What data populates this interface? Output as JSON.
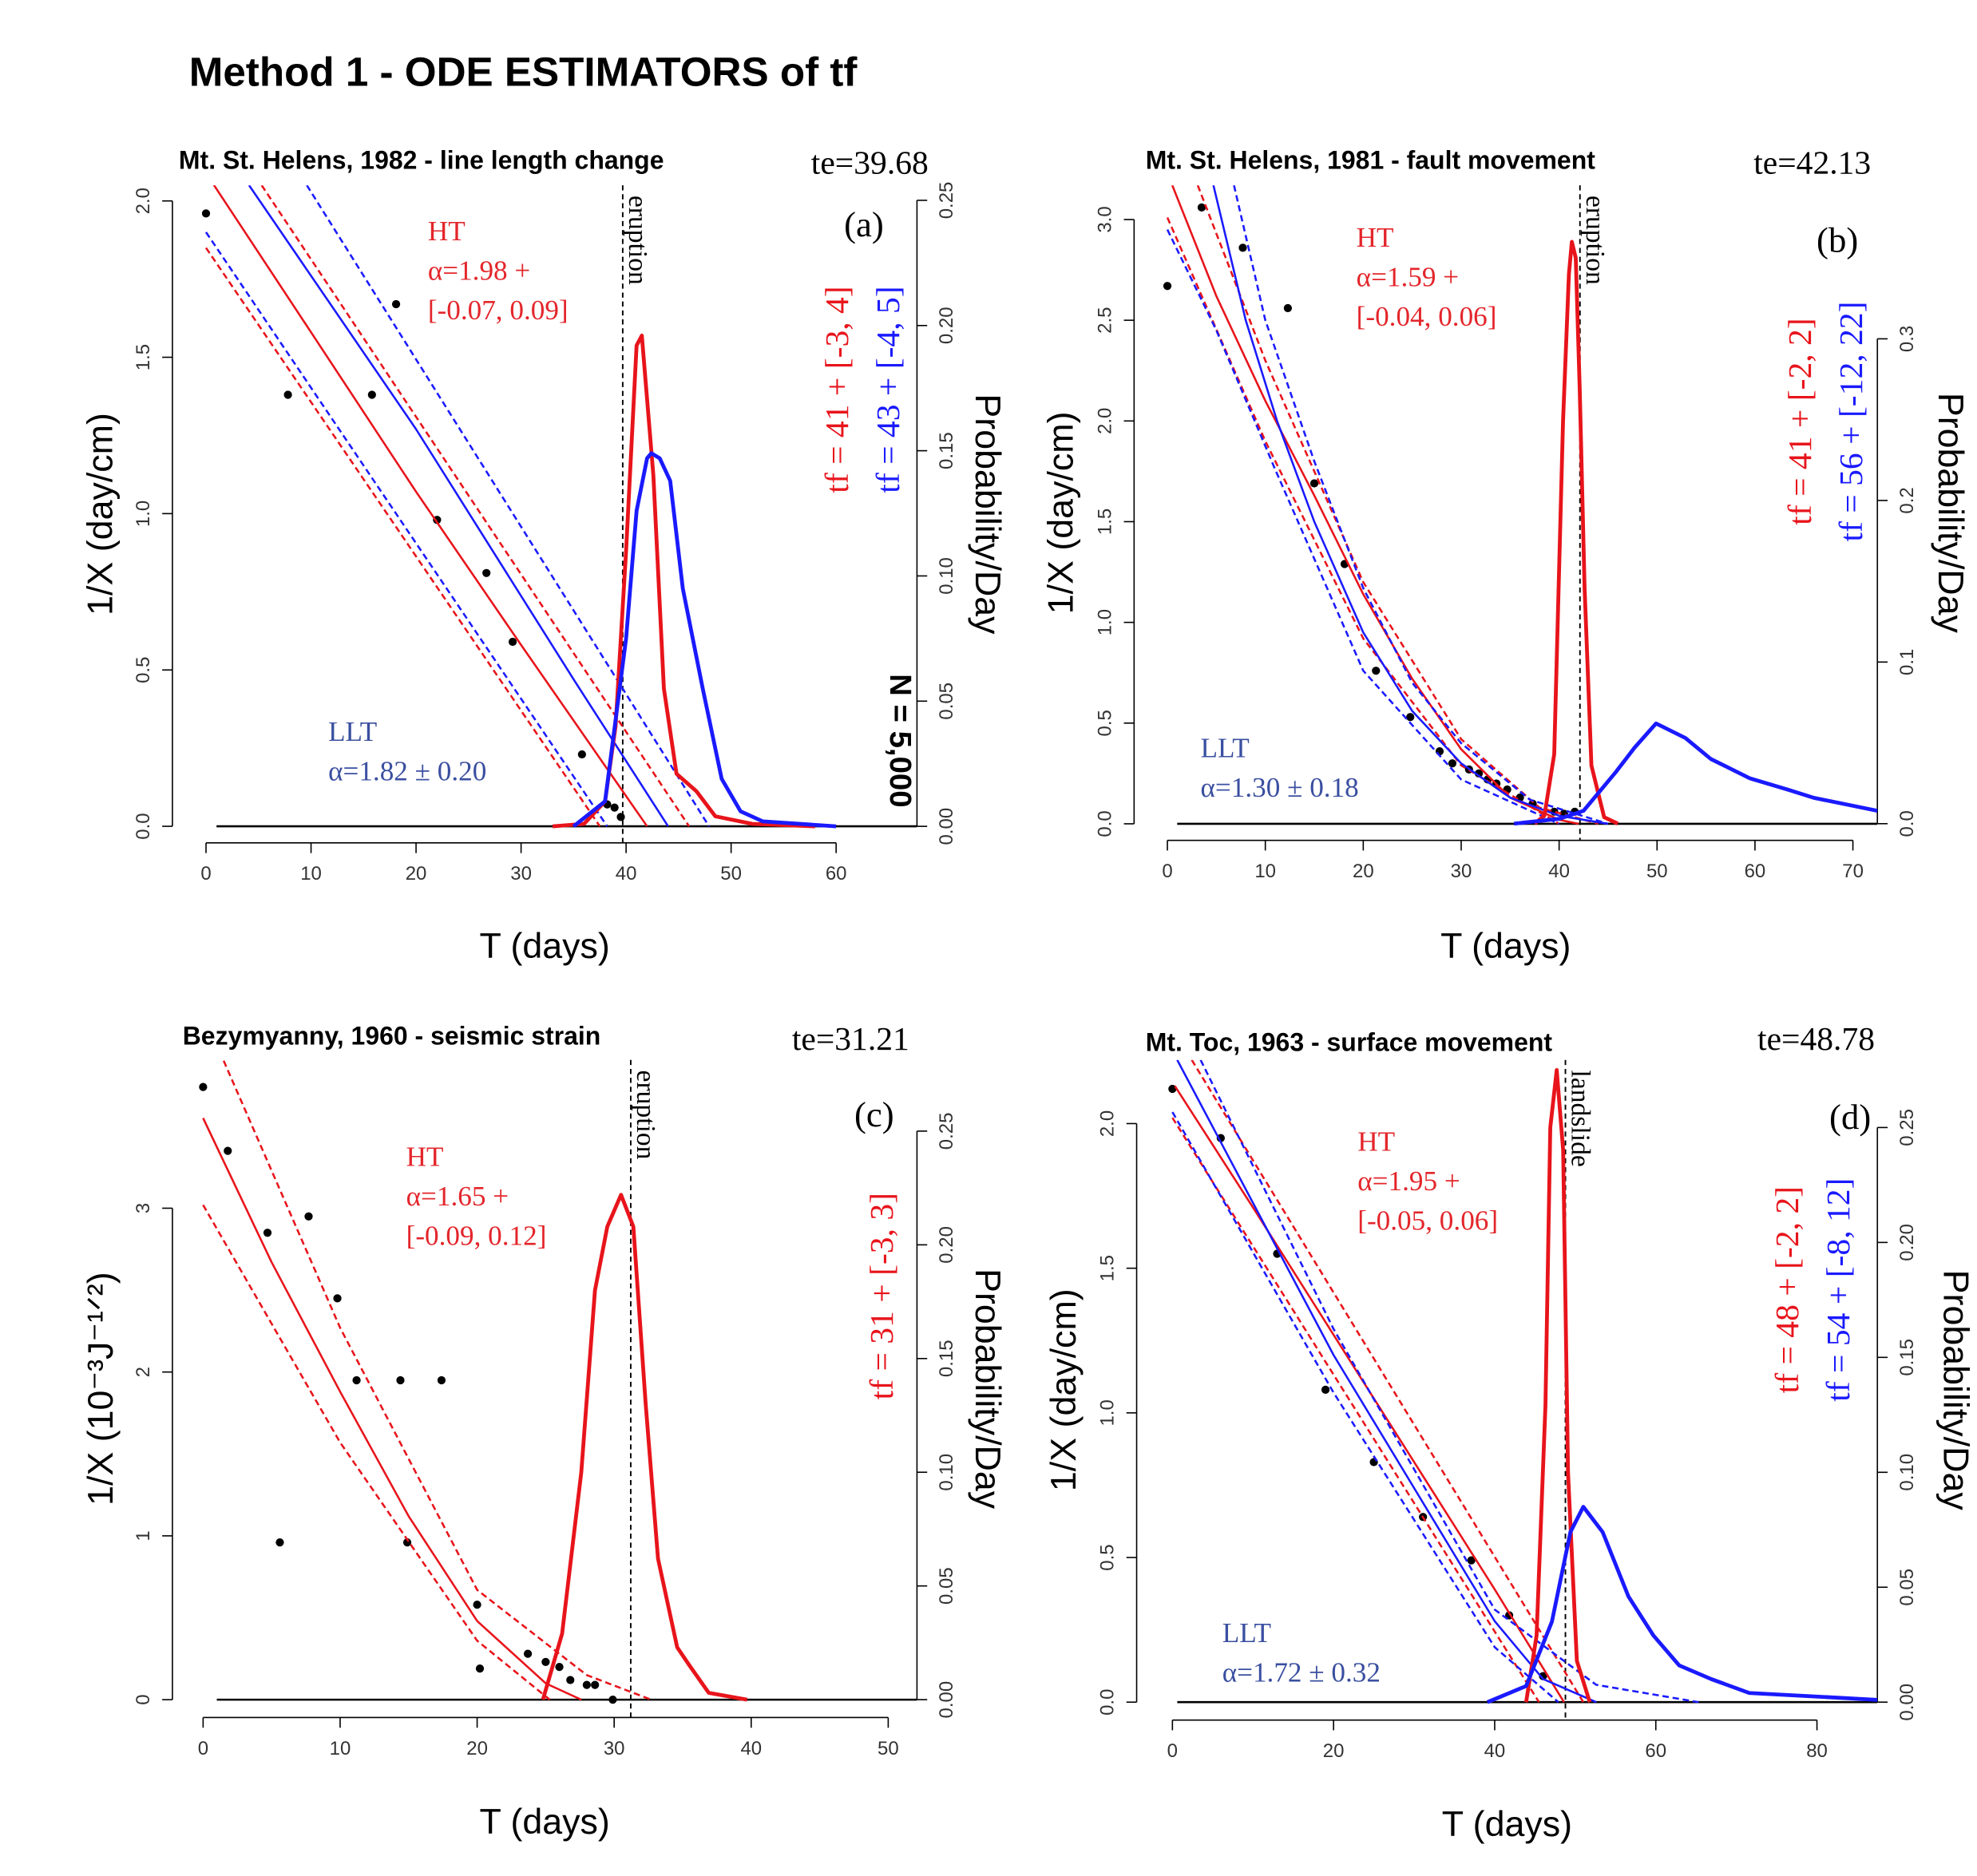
{
  "title": "Method 1 - ODE ESTIMATORS of tf",
  "chart_data": [
    {
      "type": "line",
      "title": "Mt. St. Helens, 1982 - line length change",
      "te": 39.68,
      "te_label": "te=39.68",
      "panel_label": "(a)",
      "xlabel": "T (days)",
      "ylabel": "1/X (day/cm)",
      "y2label": "Probability/Day",
      "ht_label": [
        "HT",
        "α=1.98 +",
        "[-0.07, 0.09]"
      ],
      "llt_label": [
        "LLT",
        "α=1.82 ± 0.20"
      ],
      "tf_labels": [
        {
          "text": "tf = 41 + [-3, 4]",
          "color": "#e8141b"
        },
        {
          "text": "tf = 43 + [-4, 5]",
          "color": "#1a1aff"
        }
      ],
      "n_label": "N = 5,000",
      "event_label": "eruption",
      "xlim": [
        -3.2,
        67.7
      ],
      "ylim": [
        -0.053,
        2.05
      ],
      "y2lim": [
        -0.0066,
        0.256
      ],
      "xticks": [
        0,
        10,
        20,
        30,
        40,
        50,
        60
      ],
      "yticks": [
        {
          "value": 0,
          "label": "0.0"
        },
        0.5,
        {
          "value": 1,
          "label": "1.0"
        },
        1.5,
        {
          "value": 2,
          "label": "2.0"
        }
      ],
      "y2ticks": [
        {
          "value": 0,
          "label": "0.00"
        },
        0.05,
        {
          "value": 0.1,
          "label": "0.10"
        },
        0.15,
        {
          "value": 0.2,
          "label": "0.20"
        },
        0.25
      ],
      "series": [
        {
          "style": "solid",
          "color": "#000000",
          "x": [
            1,
            67.7
          ],
          "values": [
            0,
            0
          ]
        },
        {
          "style": "points",
          "color": "#000000",
          "x": [
            0,
            7.8,
            15.8,
            18.1,
            22,
            26.7,
            29.2,
            35.8,
            38.2,
            38.9,
            39.5
          ],
          "values": [
            1.96,
            1.38,
            1.38,
            1.67,
            0.98,
            0.81,
            0.59,
            0.23,
            0.07,
            0.06,
            0.03
          ]
        },
        {
          "style": "solid",
          "color": "#e8141b",
          "x": [
            -1,
            10,
            20,
            30,
            42
          ],
          "values": [
            2.14,
            1.58,
            1.07,
            0.58,
            0
          ]
        },
        {
          "style": "dashed",
          "color": "#e8141b",
          "x": [
            5.3,
            46
          ],
          "values": [
            2.05,
            0
          ]
        },
        {
          "style": "dashed",
          "color": "#e8141b",
          "x": [
            0,
            37.5
          ],
          "values": [
            1.85,
            0
          ]
        },
        {
          "style": "solid",
          "color": "#1a1aff",
          "x": [
            4.1,
            20,
            35,
            44
          ],
          "values": [
            2.05,
            1.27,
            0.47,
            0
          ]
        },
        {
          "style": "dashed",
          "color": "#1a1aff",
          "x": [
            9.6,
            47.9
          ],
          "values": [
            2.05,
            0
          ]
        },
        {
          "style": "dashed",
          "color": "#1a1aff",
          "x": [
            0,
            38.2
          ],
          "values": [
            1.9,
            0
          ]
        },
        {
          "style": "density",
          "axis": "y2",
          "color": "#e8141b",
          "x": [
            33,
            36,
            38,
            39,
            40,
            41,
            41.5,
            42.6,
            43.6,
            44.8,
            46.7,
            48.5,
            52,
            58
          ],
          "values": [
            0,
            0.001,
            0.01,
            0.04,
            0.11,
            0.192,
            0.196,
            0.14,
            0.055,
            0.021,
            0.014,
            0.004,
            0.001,
            0
          ]
        },
        {
          "style": "density",
          "axis": "y2",
          "color": "#1a1aff",
          "x": [
            35,
            38,
            40,
            41,
            42,
            42.4,
            43.2,
            44.2,
            45.4,
            47.3,
            49.1,
            50.9,
            53,
            60
          ],
          "values": [
            0,
            0.01,
            0.075,
            0.126,
            0.147,
            0.149,
            0.147,
            0.138,
            0.095,
            0.055,
            0.019,
            0.006,
            0.002,
            0
          ]
        }
      ]
    },
    {
      "type": "line",
      "title": "Mt. St. Helens, 1981 - fault movement",
      "te": 42.13,
      "te_label": "te=42.13",
      "panel_label": "(b)",
      "xlabel": "T (days)",
      "ylabel": "1/X (day/cm)",
      "y2label": "Probability/Day",
      "ht_label": [
        "HT",
        "α=1.59 +",
        "[-0.04, 0.06]"
      ],
      "llt_label": [
        "LLT",
        "α=1.30 ± 0.18"
      ],
      "tf_labels": [
        {
          "text": "tf = 41 + [-2, 2]",
          "color": "#e8141b"
        },
        {
          "text": "tf = 56 + [-12, 22]",
          "color": "#1a1aff"
        }
      ],
      "event_label": "eruption",
      "xlim": [
        -3.4,
        72.5
      ],
      "ylim": [
        -0.082,
        3.17
      ],
      "y2lim": [
        -0.0103,
        0.395
      ],
      "xticks": [
        0,
        10,
        20,
        30,
        40,
        50,
        60,
        70
      ],
      "yticks": [
        {
          "value": 0,
          "label": "0.0"
        },
        0.5,
        {
          "value": 1,
          "label": "1.0"
        },
        1.5,
        {
          "value": 2,
          "label": "2.0"
        },
        2.5,
        {
          "value": 3,
          "label": "3.0"
        }
      ],
      "y2ticks": [
        {
          "value": 0,
          "label": "0.0"
        },
        0.1,
        0.2,
        0.3
      ],
      "series": [
        {
          "style": "solid",
          "color": "#000000",
          "x": [
            1,
            72.5
          ],
          "values": [
            0,
            0
          ]
        },
        {
          "style": "points",
          "color": "#000000",
          "x": [
            0,
            3.5,
            7.7,
            12.3,
            15,
            18.1,
            21.3,
            24.8,
            27.8,
            29.1,
            30.8,
            31.8,
            32.7,
            33.6,
            34.7,
            36,
            37.3,
            39.5,
            40.5,
            41.6
          ],
          "values": [
            2.67,
            3.06,
            2.86,
            2.56,
            1.69,
            1.29,
            0.76,
            0.53,
            0.36,
            0.3,
            0.27,
            0.25,
            0.22,
            0.2,
            0.17,
            0.13,
            0.1,
            0.06,
            0.05,
            0.06
          ]
        },
        {
          "style": "solid",
          "color": "#e8141b",
          "x": [
            0.5,
            5,
            10,
            15,
            20,
            25,
            30,
            35,
            40,
            42
          ],
          "values": [
            3.17,
            2.62,
            2.1,
            1.63,
            1.14,
            0.72,
            0.37,
            0.13,
            0.02,
            0
          ]
        },
        {
          "style": "dashed",
          "color": "#e8141b",
          "x": [
            3.1,
            10,
            20,
            30,
            38,
            44
          ],
          "values": [
            3.17,
            2.3,
            1.2,
            0.42,
            0.08,
            0
          ]
        },
        {
          "style": "dashed",
          "color": "#e8141b",
          "x": [
            0,
            10,
            20,
            30,
            40
          ],
          "values": [
            3.01,
            1.9,
            0.92,
            0.29,
            0
          ]
        },
        {
          "style": "solid",
          "color": "#1a1aff",
          "x": [
            4.7,
            8,
            11.2,
            15,
            20,
            25,
            30,
            35,
            40,
            45
          ],
          "values": [
            3.17,
            2.5,
            2.0,
            1.5,
            0.95,
            0.56,
            0.3,
            0.13,
            0.04,
            0
          ]
        },
        {
          "style": "dashed",
          "color": "#1a1aff",
          "x": [
            6.8,
            10,
            15,
            20,
            25,
            30,
            37,
            45
          ],
          "values": [
            3.17,
            2.5,
            1.8,
            1.17,
            0.7,
            0.4,
            0.12,
            0
          ]
        },
        {
          "style": "dashed",
          "color": "#1a1aff",
          "x": [
            0,
            5,
            11,
            20,
            30,
            40
          ],
          "values": [
            2.95,
            2.45,
            1.76,
            0.76,
            0.22,
            0
          ]
        },
        {
          "style": "density",
          "axis": "y2",
          "color": "#e8141b",
          "x": [
            37.5,
            38.5,
            39.5,
            40.4,
            41,
            41.3,
            41.7,
            42.1,
            42.6,
            43.3,
            44.6,
            46
          ],
          "values": [
            0,
            0.005,
            0.043,
            0.249,
            0.34,
            0.36,
            0.35,
            0.27,
            0.146,
            0.036,
            0.004,
            0
          ]
        },
        {
          "style": "density",
          "axis": "y2",
          "color": "#1a1aff",
          "x": [
            35.4,
            40,
            42.5,
            45.8,
            47.7,
            49.9,
            52.9,
            55.5,
            59.5,
            63.4,
            66,
            72.5
          ],
          "values": [
            0,
            0.003,
            0.008,
            0.032,
            0.047,
            0.062,
            0.053,
            0.04,
            0.028,
            0.021,
            0.016,
            0.008
          ]
        }
      ]
    },
    {
      "type": "line",
      "title": "Bezymyanny, 1960 - seismic strain",
      "te": 31.21,
      "te_label": "te=31.21",
      "panel_label": "(c)",
      "xlabel": "T (days)",
      "ylabel": "1/X (10⁻³J⁻¹ᐟ²)",
      "y2label": "Probability/Day",
      "ht_label": [
        "HT",
        "α=1.65 +",
        "[-0.09, 0.12]"
      ],
      "tf_labels": [
        {
          "text": "tf = 31 + [-3, 3]",
          "color": "#e8141b"
        }
      ],
      "event_label": "eruption",
      "xlim": [
        -2.24,
        52.1
      ],
      "ylim": [
        -0.109,
        3.905
      ],
      "y2lim": [
        -0.00786,
        0.2813
      ],
      "xticks": [
        0,
        10,
        20,
        30,
        40,
        50
      ],
      "yticks": [
        0,
        1,
        2,
        3
      ],
      "y2ticks": [
        {
          "value": 0,
          "label": "0.00"
        },
        0.05,
        {
          "value": 0.1,
          "label": "0.10"
        },
        0.15,
        {
          "value": 0.2,
          "label": "0.20"
        },
        0.25
      ],
      "series": [
        {
          "style": "solid",
          "color": "#000000",
          "x": [
            1,
            52.1
          ],
          "values": [
            0,
            0
          ]
        },
        {
          "style": "points",
          "color": "#000000",
          "x": [
            0,
            1.8,
            4.7,
            7.7,
            5.6,
            9.8,
            11.2,
            14.4,
            17.4,
            14.9,
            20,
            20.2,
            23.7,
            25,
            26,
            26.8,
            28,
            28.6,
            29.9
          ],
          "values": [
            3.74,
            3.35,
            2.85,
            2.95,
            0.96,
            2.45,
            1.95,
            1.95,
            1.95,
            0.96,
            0.58,
            0.19,
            0.28,
            0.23,
            0.2,
            0.12,
            0.09,
            0.09,
            0
          ]
        },
        {
          "style": "solid",
          "color": "#e8141b",
          "x": [
            0,
            5,
            10,
            15,
            20,
            25,
            27.6
          ],
          "values": [
            3.55,
            2.67,
            1.88,
            1.12,
            0.48,
            0.1,
            0
          ]
        },
        {
          "style": "dashed",
          "color": "#e8141b",
          "x": [
            1.5,
            10,
            20,
            28,
            32.7
          ],
          "values": [
            3.9,
            2.27,
            0.67,
            0.15,
            0
          ]
        },
        {
          "style": "dashed",
          "color": "#e8141b",
          "x": [
            0,
            10,
            20,
            25.3
          ],
          "values": [
            3.02,
            1.57,
            0.36,
            0
          ]
        },
        {
          "style": "density",
          "axis": "y2",
          "color": "#e8141b",
          "x": [
            24.8,
            26.2,
            27.6,
            28.6,
            29.5,
            30.5,
            31.4,
            32.3,
            33.2,
            34.6,
            35.5,
            36.9,
            39.7
          ],
          "values": [
            0,
            0.029,
            0.1,
            0.18,
            0.208,
            0.222,
            0.208,
            0.13,
            0.062,
            0.023,
            0.015,
            0.003,
            0
          ]
        }
      ]
    },
    {
      "type": "line",
      "title": "Mt. Toc, 1963 - surface movement",
      "te": 48.78,
      "te_label": "te=48.78",
      "panel_label": "(d)",
      "xlabel": "T (days)",
      "ylabel": "1/X (day/cm)",
      "y2label": "Probability/Day",
      "ht_label": [
        "HT",
        "α=1.95 +",
        "[-0.05, 0.06]"
      ],
      "llt_label": [
        "LLT",
        "α=1.72 ± 0.32"
      ],
      "tf_labels": [
        {
          "text": "tf = 48 + [-2, 2]",
          "color": "#e8141b"
        },
        {
          "text": "tf = 54 + [-8, 12]",
          "color": "#1a1aff"
        }
      ],
      "event_label": "landslide",
      "xlim": [
        -4.44,
        87.5
      ],
      "ylim": [
        -0.062,
        2.22
      ],
      "y2lim": [
        -0.0078,
        0.2794
      ],
      "xticks": [
        0,
        20,
        40,
        60,
        80
      ],
      "yticks": [
        {
          "value": 0,
          "label": "0.0"
        },
        0.5,
        {
          "value": 1,
          "label": "1.0"
        },
        1.5,
        {
          "value": 2,
          "label": "2.0"
        }
      ],
      "y2ticks": [
        {
          "value": 0,
          "label": "0.00"
        },
        0.05,
        {
          "value": 0.1,
          "label": "0.10"
        },
        0.15,
        {
          "value": 0.2,
          "label": "0.20"
        },
        0.25
      ],
      "series": [
        {
          "style": "solid",
          "color": "#000000",
          "x": [
            0.6,
            87.5
          ],
          "values": [
            0,
            0
          ]
        },
        {
          "style": "points",
          "color": "#000000",
          "x": [
            0,
            6,
            13,
            19,
            25,
            31.1,
            37.1,
            41.8,
            46
          ],
          "values": [
            2.12,
            1.95,
            1.55,
            1.08,
            0.83,
            0.64,
            0.49,
            0.3,
            0.09
          ]
        },
        {
          "style": "solid",
          "color": "#e8141b",
          "x": [
            0.3,
            10,
            20,
            30,
            40,
            48.6
          ],
          "values": [
            2.13,
            1.71,
            1.27,
            0.83,
            0.39,
            0
          ]
        },
        {
          "style": "dashed",
          "color": "#e8141b",
          "x": [
            2.4,
            51
          ],
          "values": [
            2.22,
            0
          ]
        },
        {
          "style": "dashed",
          "color": "#e8141b",
          "x": [
            0,
            45.5
          ],
          "values": [
            2.02,
            0
          ]
        },
        {
          "style": "solid",
          "color": "#1a1aff",
          "x": [
            0.6,
            20,
            40,
            46,
            52.6
          ],
          "values": [
            2.22,
            1.2,
            0.28,
            0.08,
            0
          ]
        },
        {
          "style": "dashed",
          "color": "#1a1aff",
          "x": [
            3.5,
            20,
            40,
            52.6,
            65.3
          ],
          "values": [
            2.22,
            1.29,
            0.32,
            0.06,
            0
          ]
        },
        {
          "style": "dashed",
          "color": "#1a1aff",
          "x": [
            0,
            20,
            40,
            47.9
          ],
          "values": [
            2.04,
            1.07,
            0.19,
            0
          ]
        },
        {
          "style": "density",
          "axis": "y2",
          "color": "#e8141b",
          "x": [
            43.9,
            45.2,
            46.3,
            46.9,
            47.7,
            48.5,
            49.1,
            50.2,
            51.8
          ],
          "values": [
            0,
            0.029,
            0.129,
            0.25,
            0.275,
            0.24,
            0.1,
            0.018,
            0
          ]
        },
        {
          "style": "density",
          "axis": "y2",
          "color": "#1a1aff",
          "x": [
            39.1,
            43.9,
            47.1,
            49.4,
            51,
            53.4,
            56.6,
            59.7,
            62.9,
            66.9,
            71.6,
            87.5
          ],
          "values": [
            0,
            0.007,
            0.035,
            0.074,
            0.085,
            0.074,
            0.046,
            0.029,
            0.016,
            0.01,
            0.004,
            0.001
          ]
        }
      ]
    }
  ]
}
